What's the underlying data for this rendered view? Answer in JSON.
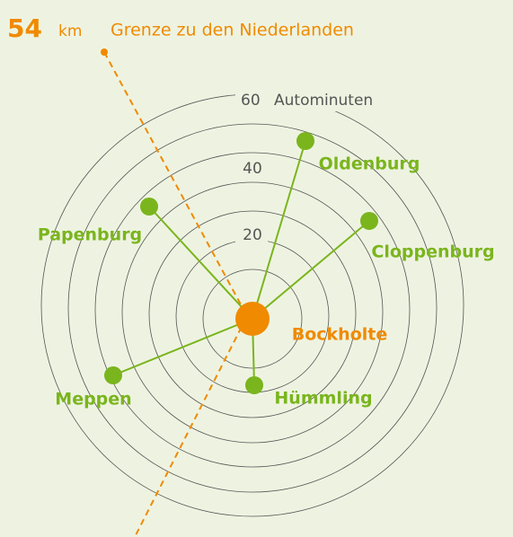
{
  "header": {
    "distance": "54",
    "unit": "km",
    "title": "Grenze zu den Niederlanden"
  },
  "rings": {
    "labels": [
      "20",
      "40",
      "60"
    ],
    "unit": "Autominuten"
  },
  "nodes": [
    {
      "label": "Bockholte"
    },
    {
      "label": "Oldenburg"
    },
    {
      "label": "Papenburg"
    },
    {
      "label": "Cloppenburg"
    },
    {
      "label": "Meppen"
    },
    {
      "label": "Hümmling"
    }
  ]
}
